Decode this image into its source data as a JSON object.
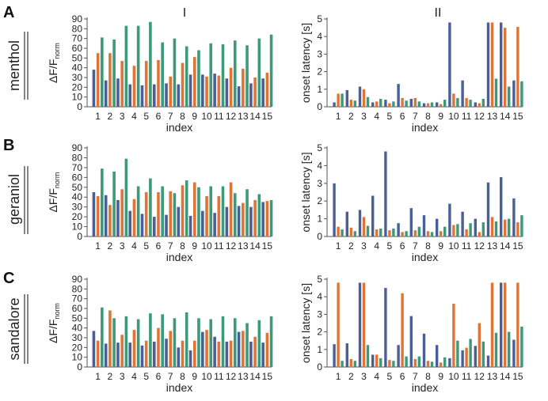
{
  "colors": {
    "series1": "#4a5f96",
    "series2": "#de7537",
    "series3": "#3c9a7b",
    "axis": "#555555"
  },
  "column_headers": [
    "I",
    "II"
  ],
  "panels": [
    {
      "letter": "A",
      "odor": "menthol"
    },
    {
      "letter": "B",
      "odor": "geraniol"
    },
    {
      "letter": "C",
      "odor": "sandalore"
    }
  ],
  "axis_text": {
    "left_ylabel_main": "ΔF/F",
    "left_ylabel_sub": "norm",
    "right_ylabel": "onset latency [s]",
    "xlabel": "index"
  },
  "chart_data": [
    {
      "type": "bar",
      "panel": "A",
      "column": "I",
      "odor": "menthol",
      "categories": [
        "1",
        "2",
        "3",
        "4",
        "5",
        "6",
        "7",
        "8",
        "9",
        "10",
        "11",
        "12",
        "13",
        "14",
        "15"
      ],
      "xlabel": "index",
      "ylabel": "ΔF/F norm",
      "ylim": [
        0,
        90
      ],
      "yticks": [
        0,
        10,
        20,
        30,
        40,
        50,
        60,
        70,
        80,
        90
      ],
      "series": [
        {
          "name": "series 1",
          "values": [
            38,
            27,
            29,
            23,
            22,
            23,
            24,
            23,
            33,
            33,
            34,
            29,
            21,
            24,
            29
          ]
        },
        {
          "name": "series 2",
          "values": [
            55,
            55,
            47,
            42,
            47,
            48,
            31,
            45,
            51,
            31,
            32,
            40,
            39,
            30,
            35
          ]
        },
        {
          "name": "series 3",
          "values": [
            71,
            69,
            83,
            83,
            87,
            66,
            70,
            62,
            58,
            65,
            64,
            68,
            63,
            70,
            74
          ]
        }
      ]
    },
    {
      "type": "bar",
      "panel": "A",
      "column": "II",
      "odor": "menthol",
      "categories": [
        "1",
        "2",
        "3",
        "4",
        "5",
        "6",
        "7",
        "8",
        "9",
        "10",
        "11",
        "12",
        "13",
        "14",
        "15"
      ],
      "xlabel": "index",
      "ylabel": "onset latency [s]",
      "ylim": [
        0,
        5
      ],
      "yticks": [
        0,
        1,
        2,
        3,
        4,
        5
      ],
      "series": [
        {
          "name": "series 1",
          "values": [
            0.25,
            0.95,
            1.15,
            0.25,
            0.4,
            1.3,
            0.45,
            0.2,
            0.25,
            4.8,
            1.5,
            0.25,
            4.8,
            4.8,
            1.5
          ]
        },
        {
          "name": "series 2",
          "values": [
            0.75,
            0.4,
            1.0,
            0.3,
            0.2,
            0.5,
            0.5,
            0.2,
            0.15,
            0.75,
            0.5,
            0.2,
            4.8,
            4.5,
            4.55
          ]
        },
        {
          "name": "series 3",
          "values": [
            0.75,
            0.35,
            0.55,
            0.45,
            0.3,
            0.35,
            0.3,
            0.25,
            0.4,
            0.5,
            0.4,
            0.45,
            1.6,
            1.15,
            1.45
          ]
        }
      ]
    },
    {
      "type": "bar",
      "panel": "B",
      "column": "I",
      "odor": "geraniol",
      "categories": [
        "1",
        "2",
        "3",
        "4",
        "5",
        "6",
        "7",
        "8",
        "9",
        "10",
        "11",
        "12",
        "13",
        "14",
        "15"
      ],
      "xlabel": "index",
      "ylabel": "ΔF/F norm",
      "ylim": [
        0,
        90
      ],
      "yticks": [
        0,
        10,
        20,
        30,
        40,
        50,
        60,
        70,
        80,
        90
      ],
      "series": [
        {
          "name": "series 1",
          "values": [
            45,
            42,
            37,
            26,
            23,
            20,
            22,
            30,
            21,
            26,
            24,
            30,
            31,
            30,
            35
          ]
        },
        {
          "name": "series 2",
          "values": [
            41,
            32,
            48,
            38,
            45,
            45,
            46,
            52,
            55,
            41,
            41,
            55,
            34,
            37,
            36
          ]
        },
        {
          "name": "series 3",
          "values": [
            69,
            66,
            79,
            51,
            59,
            51,
            44,
            57,
            50,
            51,
            51,
            44,
            48,
            43,
            37
          ]
        }
      ]
    },
    {
      "type": "bar",
      "panel": "B",
      "column": "II",
      "odor": "geraniol",
      "categories": [
        "1",
        "2",
        "3",
        "4",
        "5",
        "6",
        "7",
        "8",
        "9",
        "10",
        "11",
        "12",
        "13",
        "14",
        "15"
      ],
      "xlabel": "index",
      "ylabel": "onset latency [s]",
      "ylim": [
        0,
        5
      ],
      "yticks": [
        0,
        1,
        2,
        3,
        4,
        5
      ],
      "series": [
        {
          "name": "series 1",
          "values": [
            3.0,
            1.4,
            1.5,
            2.3,
            4.8,
            0.75,
            1.6,
            1.2,
            1.0,
            1.85,
            1.4,
            1.0,
            3.05,
            3.35,
            2.15
          ]
        },
        {
          "name": "series 2",
          "values": [
            0.55,
            0.5,
            1.1,
            0.4,
            0.35,
            0.25,
            0.35,
            0.3,
            0.3,
            0.65,
            0.4,
            0.25,
            1.1,
            0.95,
            0.8
          ]
        },
        {
          "name": "series 3",
          "values": [
            0.4,
            0.3,
            0.6,
            0.45,
            0.45,
            0.3,
            0.55,
            0.25,
            0.55,
            0.7,
            0.75,
            0.8,
            0.85,
            1.0,
            1.2
          ]
        }
      ]
    },
    {
      "type": "bar",
      "panel": "C",
      "column": "I",
      "odor": "sandalore",
      "categories": [
        "1",
        "2",
        "3",
        "4",
        "5",
        "6",
        "7",
        "8",
        "9",
        "10",
        "11",
        "12",
        "13",
        "14",
        "15"
      ],
      "xlabel": "index",
      "ylabel": "ΔF/F norm",
      "ylim": [
        0,
        90
      ],
      "yticks": [
        0,
        10,
        20,
        30,
        40,
        50,
        60,
        70,
        80,
        90
      ],
      "series": [
        {
          "name": "series 1",
          "values": [
            37,
            24,
            25,
            25,
            22,
            26,
            29,
            20,
            17,
            36,
            31,
            26,
            36,
            26,
            25
          ]
        },
        {
          "name": "series 2",
          "values": [
            27,
            58,
            33,
            38,
            27,
            40,
            37,
            27,
            27,
            38,
            26,
            27,
            37,
            31,
            35
          ]
        },
        {
          "name": "series 3",
          "values": [
            61,
            50,
            52,
            49,
            55,
            54,
            50,
            56,
            50,
            49,
            52,
            50,
            45,
            48,
            52
          ]
        }
      ]
    },
    {
      "type": "bar",
      "panel": "C",
      "column": "II",
      "odor": "sandalore",
      "categories": [
        "1",
        "2",
        "3",
        "4",
        "5",
        "6",
        "7",
        "8",
        "9",
        "10",
        "11",
        "12",
        "13",
        "14",
        "15"
      ],
      "xlabel": "index",
      "ylabel": "onset latency [s]",
      "ylim": [
        0,
        5
      ],
      "yticks": [
        0,
        1,
        2,
        3,
        4,
        5
      ],
      "series": [
        {
          "name": "series 1",
          "values": [
            1.3,
            1.35,
            4.8,
            0.7,
            4.5,
            1.25,
            2.9,
            1.9,
            1.25,
            0.5,
            0.95,
            1.2,
            0.65,
            4.8,
            1.55
          ]
        },
        {
          "name": "series 2",
          "values": [
            4.8,
            0.45,
            4.8,
            0.7,
            0.4,
            4.2,
            0.45,
            0.35,
            0.25,
            3.6,
            1.1,
            2.5,
            4.8,
            4.8,
            4.8
          ]
        },
        {
          "name": "series 3",
          "values": [
            0.35,
            0.35,
            1.25,
            0.5,
            0.35,
            0.6,
            0.6,
            0.3,
            0.55,
            1.5,
            1.6,
            1.45,
            1.95,
            2.0,
            2.3
          ]
        }
      ]
    }
  ]
}
